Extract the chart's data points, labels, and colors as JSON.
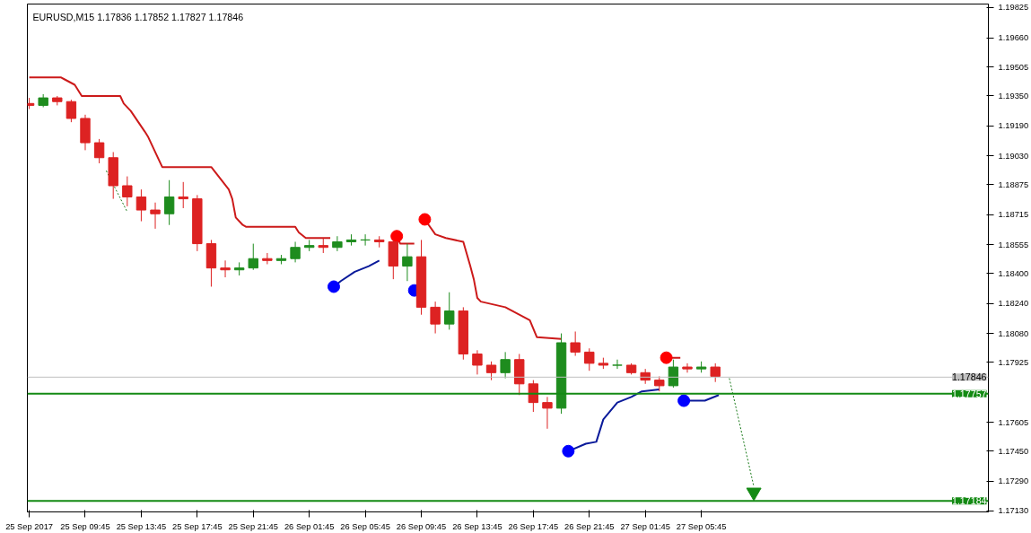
{
  "chart_data": {
    "type": "candlestick",
    "title": "EURUSD,M15  1.17836 1.17852 1.17827 1.17846",
    "x": [
      "2017-09-25T05:45",
      "2017-09-25T06:45",
      "2017-09-25T07:45",
      "2017-09-25T08:45",
      "2017-09-25T09:45",
      "2017-09-25T10:45",
      "2017-09-25T11:45",
      "2017-09-25T12:45",
      "2017-09-25T13:45",
      "2017-09-25T14:45",
      "2017-09-25T15:45",
      "2017-09-25T16:45",
      "2017-09-25T17:45",
      "2017-09-25T18:45",
      "2017-09-25T19:45",
      "2017-09-25T20:45",
      "2017-09-25T21:45",
      "2017-09-25T22:45",
      "2017-09-25T23:45",
      "2017-09-26T00:45",
      "2017-09-26T01:45",
      "2017-09-26T02:45",
      "2017-09-26T03:45",
      "2017-09-26T04:45",
      "2017-09-26T05:45",
      "2017-09-26T06:45",
      "2017-09-26T07:45",
      "2017-09-26T08:45",
      "2017-09-26T09:45",
      "2017-09-26T10:45",
      "2017-09-26T11:45",
      "2017-09-26T12:45",
      "2017-09-26T13:45",
      "2017-09-26T14:45",
      "2017-09-26T15:45",
      "2017-09-26T16:45",
      "2017-09-26T17:45",
      "2017-09-26T18:45",
      "2017-09-26T19:45",
      "2017-09-26T20:45",
      "2017-09-26T21:45",
      "2017-09-26T22:45",
      "2017-09-26T23:45",
      "2017-09-27T00:45",
      "2017-09-27T01:45",
      "2017-09-27T02:45",
      "2017-09-27T03:45",
      "2017-09-27T04:45",
      "2017-09-27T05:45",
      "2017-09-27T06:45"
    ],
    "ohlc": [
      [
        1.1931,
        1.1934,
        1.1928,
        1.193
      ],
      [
        1.193,
        1.1936,
        1.1929,
        1.1934
      ],
      [
        1.1934,
        1.1935,
        1.193,
        1.1932
      ],
      [
        1.1932,
        1.1933,
        1.1921,
        1.1923
      ],
      [
        1.1923,
        1.1925,
        1.1906,
        1.191
      ],
      [
        1.191,
        1.1912,
        1.1899,
        1.1902
      ],
      [
        1.1902,
        1.1905,
        1.188,
        1.1887
      ],
      [
        1.1887,
        1.1892,
        1.1876,
        1.1881
      ],
      [
        1.1881,
        1.1885,
        1.1868,
        1.1874
      ],
      [
        1.1874,
        1.1878,
        1.1864,
        1.1872
      ],
      [
        1.1872,
        1.189,
        1.1866,
        1.1881
      ],
      [
        1.1881,
        1.1889,
        1.1875,
        1.188
      ],
      [
        1.188,
        1.1882,
        1.1852,
        1.1856
      ],
      [
        1.1856,
        1.1858,
        1.1833,
        1.1843
      ],
      [
        1.1843,
        1.1847,
        1.1838,
        1.1842
      ],
      [
        1.1842,
        1.1846,
        1.1839,
        1.1843
      ],
      [
        1.1843,
        1.1856,
        1.1842,
        1.1848
      ],
      [
        1.1848,
        1.1851,
        1.1845,
        1.1847
      ],
      [
        1.1847,
        1.185,
        1.1845,
        1.1848
      ],
      [
        1.1848,
        1.1857,
        1.1846,
        1.1854
      ],
      [
        1.1854,
        1.1858,
        1.1852,
        1.1855
      ],
      [
        1.1855,
        1.1859,
        1.1851,
        1.1854
      ],
      [
        1.1854,
        1.186,
        1.1852,
        1.1857
      ],
      [
        1.1857,
        1.1861,
        1.1855,
        1.1858
      ],
      [
        1.1858,
        1.1861,
        1.1855,
        1.1858
      ],
      [
        1.1858,
        1.186,
        1.1854,
        1.1857
      ],
      [
        1.1857,
        1.1858,
        1.1837,
        1.1844
      ],
      [
        1.1844,
        1.1856,
        1.1836,
        1.1849
      ],
      [
        1.1849,
        1.1858,
        1.1818,
        1.1822
      ],
      [
        1.1822,
        1.1825,
        1.1808,
        1.1813
      ],
      [
        1.1813,
        1.183,
        1.181,
        1.182
      ],
      [
        1.182,
        1.1822,
        1.1794,
        1.1797
      ],
      [
        1.1797,
        1.1799,
        1.1786,
        1.1791
      ],
      [
        1.1791,
        1.1793,
        1.1783,
        1.1787
      ],
      [
        1.1787,
        1.1798,
        1.1784,
        1.1794
      ],
      [
        1.1794,
        1.1797,
        1.1775,
        1.1781
      ],
      [
        1.1781,
        1.1783,
        1.1766,
        1.1771
      ],
      [
        1.1771,
        1.1774,
        1.1757,
        1.1768
      ],
      [
        1.1768,
        1.1808,
        1.1765,
        1.1803
      ],
      [
        1.1803,
        1.1809,
        1.1796,
        1.1798
      ],
      [
        1.1798,
        1.18,
        1.1788,
        1.1792
      ],
      [
        1.1792,
        1.1795,
        1.1789,
        1.1791
      ],
      [
        1.1791,
        1.1794,
        1.1789,
        1.1791
      ],
      [
        1.1791,
        1.1792,
        1.1786,
        1.1787
      ],
      [
        1.1787,
        1.1789,
        1.1781,
        1.1783
      ],
      [
        1.1783,
        1.1785,
        1.1777,
        1.178
      ],
      [
        1.178,
        1.1794,
        1.1779,
        1.179
      ],
      [
        1.179,
        1.1792,
        1.1787,
        1.1789
      ],
      [
        1.1789,
        1.1793,
        1.1787,
        1.179
      ],
      [
        1.179,
        1.1792,
        1.1782,
        1.1785
      ]
    ],
    "colors": [
      "#dd2222",
      "#1e8c1e",
      "#dd2222",
      "#dd2222",
      "#dd2222",
      "#dd2222",
      "#dd2222",
      "#dd2222",
      "#dd2222",
      "#dd2222",
      "#1e8c1e",
      "#dd2222",
      "#dd2222",
      "#dd2222",
      "#dd2222",
      "#1e8c1e",
      "#1e8c1e",
      "#dd2222",
      "#1e8c1e",
      "#1e8c1e",
      "#1e8c1e",
      "#dd2222",
      "#1e8c1e",
      "#1e8c1e",
      "#1e8c1e",
      "#dd2222",
      "#dd2222",
      "#1e8c1e",
      "#dd2222",
      "#dd2222",
      "#1e8c1e",
      "#dd2222",
      "#dd2222",
      "#dd2222",
      "#1e8c1e",
      "#dd2222",
      "#dd2222",
      "#dd2222",
      "#1e8c1e",
      "#dd2222",
      "#dd2222",
      "#dd2222",
      "#1e8c1e",
      "#dd2222",
      "#dd2222",
      "#dd2222",
      "#1e8c1e",
      "#dd2222",
      "#1e8c1e",
      "#dd2222"
    ],
    "series": [
      {
        "type": "line",
        "color": "#cc1a1a",
        "x": [
          "2017-09-25T05:45",
          "2017-09-25T08:00",
          "2017-09-25T08:15",
          "2017-09-25T09:00",
          "2017-09-25T09:30",
          "2017-09-25T12:15",
          "2017-09-25T12:30",
          "2017-09-25T13:00",
          "2017-09-25T14:00",
          "2017-09-25T14:15",
          "2017-09-25T15:00",
          "2017-09-25T15:15",
          "2017-09-25T18:45",
          "2017-09-25T20:00",
          "2017-09-25T20:15",
          "2017-09-25T20:30",
          "2017-09-25T21:00",
          "2017-09-25T21:15",
          "2017-09-26T00:45",
          "2017-09-26T01:00",
          "2017-09-26T01:30",
          "2017-09-26T03:15",
          "2017-09-26T03:30",
          "2017-09-26T08:00",
          "2017-09-26T08:15",
          "2017-09-26T09:15",
          "2017-09-26T09:30",
          "2017-09-26T10:00",
          "2017-09-26T10:45",
          "2017-09-26T11:30",
          "2017-09-26T12:45",
          "2017-09-26T13:15",
          "2017-09-26T13:30",
          "2017-09-26T13:45",
          "2017-09-26T14:00",
          "2017-09-26T15:45",
          "2017-09-26T17:30",
          "2017-09-26T18:00",
          "2017-09-26T19:45",
          "2017-09-26T20:00",
          "2017-09-27T03:15",
          "2017-09-27T04:15"
        ],
        "values": [
          1.1945,
          1.1945,
          1.1944,
          1.1941,
          1.1935,
          1.1935,
          1.1931,
          1.1927,
          1.1916,
          1.1913,
          1.1901,
          1.1897,
          1.1897,
          1.1885,
          1.188,
          1.187,
          1.1866,
          1.1865,
          1.1865,
          1.1862,
          1.1859,
          1.1859,
          null,
          1.186,
          1.1856,
          1.1856,
          null,
          1.1869,
          1.1861,
          1.1859,
          1.1857,
          1.1844,
          1.1837,
          1.1827,
          1.1825,
          1.1822,
          1.1815,
          1.1806,
          1.1805,
          null,
          1.1795,
          1.1795
        ]
      },
      {
        "type": "line",
        "color": "#0a1a9a",
        "x": [
          "2017-09-26T03:30",
          "2017-09-26T04:00",
          "2017-09-26T05:00",
          "2017-09-26T06:00",
          "2017-09-26T06:45",
          "2017-09-26T07:45",
          "2017-09-26T08:00",
          "2017-09-26T20:15",
          "2017-09-26T21:30",
          "2017-09-26T22:15",
          "2017-09-26T22:45",
          "2017-09-26T23:45",
          "2017-09-27T00:45",
          "2017-09-27T01:30",
          "2017-09-27T02:45",
          "2017-09-27T03:00",
          "2017-09-27T04:30",
          "2017-09-27T06:00",
          "2017-09-27T07:00"
        ],
        "values": [
          1.1833,
          1.1836,
          1.1841,
          1.1844,
          1.1847,
          null,
          null,
          1.1745,
          1.1749,
          1.175,
          1.1762,
          1.1771,
          1.1774,
          1.1777,
          1.1778,
          null,
          1.1772,
          1.1772,
          1.1775
        ]
      },
      {
        "type": "scatter",
        "marker": "circle",
        "color": "#ff0000",
        "x": [
          "2017-09-26T08:00",
          "2017-09-26T10:00",
          "2017-09-27T03:15"
        ],
        "values": [
          1.186,
          1.1869,
          1.1795
        ]
      },
      {
        "type": "scatter",
        "marker": "circle",
        "color": "#0000ff",
        "x": [
          "2017-09-26T03:30",
          "2017-09-26T09:15",
          "2017-09-26T20:15",
          "2017-09-27T04:30"
        ],
        "values": [
          1.1833,
          1.1831,
          1.1745,
          1.1772
        ]
      },
      {
        "type": "line",
        "line_style": "dotted",
        "color": "#1a7a1a",
        "x": [
          "2017-09-25T11:15",
          "2017-09-25T12:45"
        ],
        "values": [
          1.1895,
          1.1873
        ]
      },
      {
        "type": "line",
        "line_style": "dotted",
        "color": "#1a7a1a",
        "x": [
          "2017-09-27T07:45",
          "2017-09-27T09:30"
        ],
        "values": [
          1.1784,
          1.1726
        ]
      },
      {
        "type": "scatter",
        "marker": "triangle",
        "color": "#138a13",
        "x": [
          "2017-09-27T09:30"
        ],
        "values": [
          1.1723
        ]
      }
    ],
    "ref_lines": [
      {
        "axis": "y",
        "value": 1.17846,
        "label": "1.17846",
        "color": "#c0c0c0"
      },
      {
        "axis": "y",
        "value": 1.17757,
        "label": "1.17757",
        "color": "#138a13"
      },
      {
        "axis": "y",
        "value": 1.17184,
        "label": "1.17184",
        "color": "#138a13"
      }
    ],
    "xlim": [
      "2017-09-25T05:37",
      "2017-09-28T02:15"
    ],
    "xticks": [
      {
        "value": "2017-09-25T05:45",
        "label": "25 Sep 2017"
      },
      {
        "value": "2017-09-25T09:45",
        "label": "25 Sep 09:45"
      },
      {
        "value": "2017-09-25T13:45",
        "label": "25 Sep 13:45"
      },
      {
        "value": "2017-09-25T17:45",
        "label": "25 Sep 17:45"
      },
      {
        "value": "2017-09-25T21:45",
        "label": "25 Sep 21:45"
      },
      {
        "value": "2017-09-26T01:45",
        "label": "26 Sep 01:45"
      },
      {
        "value": "2017-09-26T05:45",
        "label": "26 Sep 05:45"
      },
      {
        "value": "2017-09-26T09:45",
        "label": "26 Sep 09:45"
      },
      {
        "value": "2017-09-26T13:45",
        "label": "26 Sep 13:45"
      },
      {
        "value": "2017-09-26T17:45",
        "label": "26 Sep 17:45"
      },
      {
        "value": "2017-09-26T21:45",
        "label": "26 Sep 21:45"
      },
      {
        "value": "2017-09-27T01:45",
        "label": "27 Sep 01:45"
      },
      {
        "value": "2017-09-27T05:45",
        "label": "27 Sep 05:45"
      }
    ],
    "ylim": [
      1.17125,
      1.19842
    ],
    "yticks": [
      {
        "value": 1.19825,
        "label": "1.19825"
      },
      {
        "value": 1.1966,
        "label": "1.19660"
      },
      {
        "value": 1.19505,
        "label": "1.19505"
      },
      {
        "value": 1.1935,
        "label": "1.19350"
      },
      {
        "value": 1.1919,
        "label": "1.19190"
      },
      {
        "value": 1.1903,
        "label": "1.19030"
      },
      {
        "value": 1.18875,
        "label": "1.18875"
      },
      {
        "value": 1.18715,
        "label": "1.18715"
      },
      {
        "value": 1.18555,
        "label": "1.18555"
      },
      {
        "value": 1.184,
        "label": "1.18400"
      },
      {
        "value": 1.1824,
        "label": "1.18240"
      },
      {
        "value": 1.1808,
        "label": "1.18080"
      },
      {
        "value": 1.17925,
        "label": "1.17925"
      },
      {
        "value": 1.17605,
        "label": "1.17605"
      },
      {
        "value": 1.1745,
        "label": "1.17450"
      },
      {
        "value": 1.1729,
        "label": "1.17290"
      },
      {
        "value": 1.1713,
        "label": "1.17130"
      }
    ],
    "grid": false
  }
}
